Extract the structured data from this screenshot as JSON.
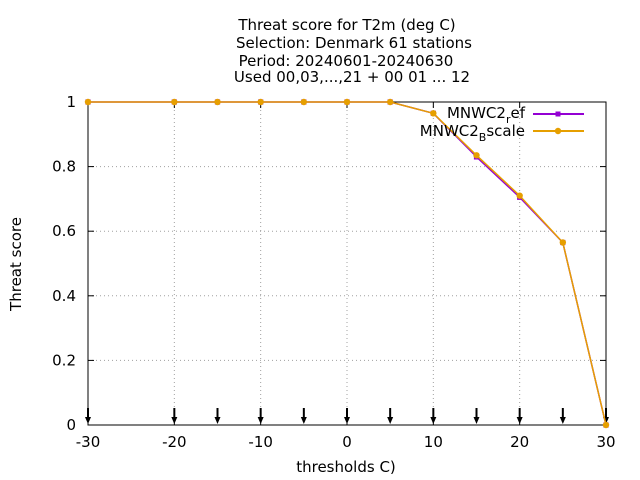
{
  "chart_data": {
    "type": "line",
    "title_lines": [
      "Threat score  for T2m (deg C)",
      "Selection: Denmark     61 stations",
      "Period: 20240601-20240630",
      "Used 00,03,...,21 + 00 01 ... 12"
    ],
    "xlabel": "thresholds C)",
    "ylabel": "Threat score",
    "xlim": [
      -30,
      30
    ],
    "ylim": [
      0,
      1
    ],
    "x_ticks": [
      -30,
      -20,
      -10,
      0,
      10,
      20,
      30
    ],
    "x_tick_labels": [
      "-30",
      "-20",
      "-10",
      "0",
      "10",
      "20",
      "30"
    ],
    "y_ticks": [
      0,
      0.2,
      0.4,
      0.6,
      0.8,
      1
    ],
    "y_tick_labels": [
      "0",
      "0.2",
      "0.4",
      "0.6",
      "0.8",
      "1"
    ],
    "grid": true,
    "legend_position": "top-right",
    "x": [
      -30,
      -20,
      -15,
      -10,
      -5,
      0,
      5,
      10,
      15,
      20,
      25,
      30
    ],
    "series": [
      {
        "name_base": "MNWC2",
        "name_sub": "r",
        "name_rest": "ef",
        "color": "#9400d3",
        "marker": "filled-square",
        "values": [
          1.0,
          1.0,
          1.0,
          1.0,
          1.0,
          1.0,
          1.0,
          0.965,
          0.83,
          0.705,
          0.565,
          0.0
        ]
      },
      {
        "name_base": "MNWC2",
        "name_sub": "B",
        "name_rest": "scale",
        "color": "#e69f00",
        "marker": "filled-circle",
        "values": [
          1.0,
          1.0,
          1.0,
          1.0,
          1.0,
          1.0,
          1.0,
          0.965,
          0.835,
          0.71,
          0.565,
          0.0
        ]
      }
    ],
    "arrow_markers_x": [
      -30,
      -20,
      -15,
      -10,
      -5,
      0,
      5,
      10,
      15,
      20,
      25,
      30
    ]
  }
}
